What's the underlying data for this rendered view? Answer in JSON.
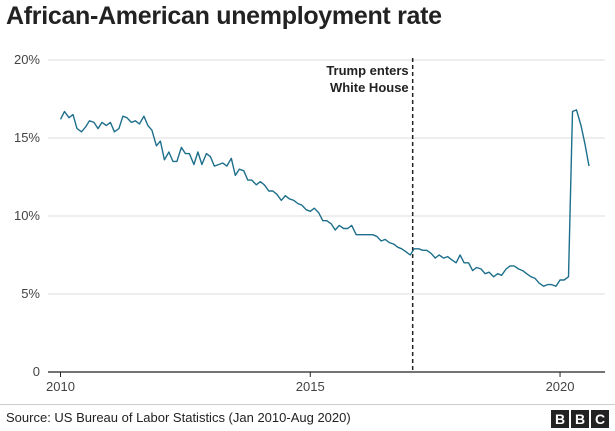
{
  "title": "African-American unemployment rate",
  "source": "Source: US Bureau of Labor Statistics (Jan 2010-Aug 2020)",
  "logo": {
    "letters": [
      "B",
      "B",
      "C"
    ]
  },
  "colors": {
    "line": "#1d6f8b",
    "grid": "#dddddd",
    "axis": "#222222",
    "text": "#444444"
  },
  "chart_data": {
    "type": "line",
    "title": "African-American unemployment rate",
    "xlabel": "",
    "ylabel": "",
    "xlim": [
      2009.75,
      2020.9
    ],
    "ylim": [
      0,
      20
    ],
    "grid": true,
    "y_ticks": [
      0,
      5,
      10,
      15,
      20
    ],
    "y_tick_labels": [
      "0",
      "5%",
      "10%",
      "15%",
      "20%"
    ],
    "x_ticks": [
      2010,
      2015,
      2020
    ],
    "x_tick_labels": [
      "2010",
      "2015",
      "2020"
    ],
    "annotation": {
      "x": 2017.05,
      "lines": [
        "Trump enters",
        "White House"
      ]
    },
    "series": [
      {
        "x": [
          2010.0,
          2010.08,
          2010.17,
          2010.25,
          2010.33,
          2010.42,
          2010.5,
          2010.58,
          2010.67,
          2010.75,
          2010.83,
          2010.92,
          2011.0,
          2011.08,
          2011.17,
          2011.25,
          2011.33,
          2011.42,
          2011.5,
          2011.58,
          2011.67,
          2011.75,
          2011.83,
          2011.92,
          2012.0,
          2012.08,
          2012.17,
          2012.25,
          2012.33,
          2012.42,
          2012.5,
          2012.58,
          2012.67,
          2012.75,
          2012.83,
          2012.92,
          2013.0,
          2013.08,
          2013.17,
          2013.25,
          2013.33,
          2013.42,
          2013.5,
          2013.58,
          2013.67,
          2013.75,
          2013.83,
          2013.92,
          2014.0,
          2014.08,
          2014.17,
          2014.25,
          2014.33,
          2014.42,
          2014.5,
          2014.58,
          2014.67,
          2014.75,
          2014.83,
          2014.92,
          2015.0,
          2015.08,
          2015.17,
          2015.25,
          2015.33,
          2015.42,
          2015.5,
          2015.58,
          2015.67,
          2015.75,
          2015.83,
          2015.92,
          2016.0,
          2016.08,
          2016.17,
          2016.25,
          2016.33,
          2016.42,
          2016.5,
          2016.58,
          2016.67,
          2016.75,
          2016.83,
          2016.92,
          2017.0,
          2017.08,
          2017.17,
          2017.25,
          2017.33,
          2017.42,
          2017.5,
          2017.58,
          2017.67,
          2017.75,
          2017.83,
          2017.92,
          2018.0,
          2018.08,
          2018.17,
          2018.25,
          2018.33,
          2018.42,
          2018.5,
          2018.58,
          2018.67,
          2018.75,
          2018.83,
          2018.92,
          2019.0,
          2019.08,
          2019.17,
          2019.25,
          2019.33,
          2019.42,
          2019.5,
          2019.58,
          2019.67,
          2019.75,
          2019.83,
          2019.92,
          2020.0,
          2020.08,
          2020.17,
          2020.25,
          2020.33,
          2020.42,
          2020.5,
          2020.58
        ],
        "y": [
          16.2,
          16.7,
          16.3,
          16.5,
          15.6,
          15.4,
          15.7,
          16.1,
          16.0,
          15.6,
          16.0,
          15.8,
          16.0,
          15.4,
          15.6,
          16.4,
          16.3,
          16.0,
          16.1,
          15.9,
          16.4,
          15.8,
          15.5,
          14.5,
          14.8,
          13.6,
          14.1,
          13.5,
          13.5,
          14.4,
          14.0,
          14.0,
          13.3,
          14.1,
          13.3,
          14.0,
          13.8,
          13.2,
          13.3,
          13.4,
          13.2,
          13.7,
          12.6,
          13.0,
          12.9,
          12.3,
          12.3,
          12.0,
          12.2,
          12.0,
          11.6,
          11.6,
          11.4,
          11.0,
          11.3,
          11.1,
          11.0,
          10.8,
          10.7,
          10.4,
          10.3,
          10.5,
          10.2,
          9.7,
          9.7,
          9.5,
          9.1,
          9.4,
          9.2,
          9.2,
          9.4,
          8.8,
          8.8,
          8.8,
          8.8,
          8.8,
          8.7,
          8.4,
          8.5,
          8.3,
          8.2,
          8.0,
          7.9,
          7.7,
          7.5,
          7.9,
          7.9,
          7.8,
          7.8,
          7.6,
          7.3,
          7.5,
          7.3,
          7.4,
          7.2,
          7.0,
          7.5,
          7.0,
          7.0,
          6.5,
          6.7,
          6.6,
          6.3,
          6.4,
          6.1,
          6.3,
          6.2,
          6.6,
          6.8,
          6.8,
          6.6,
          6.5,
          6.3,
          6.1,
          6.0,
          5.7,
          5.5,
          5.6,
          5.6,
          5.5,
          5.9,
          5.9,
          6.1,
          16.7,
          16.8,
          15.8,
          14.6,
          13.2
        ]
      }
    ]
  }
}
